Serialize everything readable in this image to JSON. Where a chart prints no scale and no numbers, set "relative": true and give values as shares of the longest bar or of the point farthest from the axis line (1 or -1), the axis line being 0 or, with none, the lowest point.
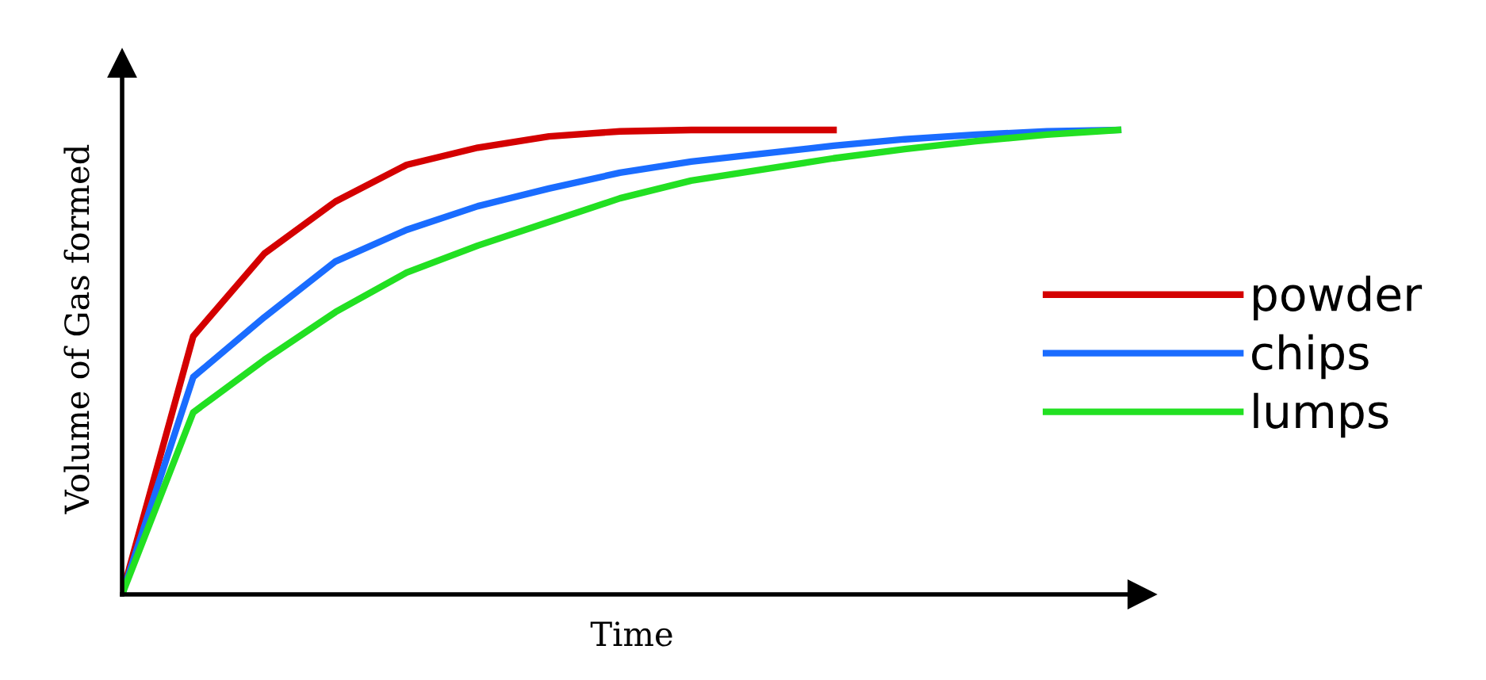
{
  "chart_data": {
    "type": "line",
    "relative": true,
    "xlabel": "Time",
    "ylabel": "Volume of Gas formed",
    "categories": [
      null,
      null,
      null,
      null,
      null,
      null,
      null,
      null,
      null,
      null,
      null,
      null,
      null,
      null,
      null
    ],
    "series": [
      {
        "name": "powder",
        "color": "#d40000",
        "values": [
          0,
          0.556,
          0.734,
          0.846,
          0.925,
          0.962,
          0.986,
          0.997,
          1,
          1,
          1,
          null,
          null,
          null,
          null
        ]
      },
      {
        "name": "chips",
        "color": "#1a6cff",
        "values": [
          0,
          0.468,
          0.597,
          0.717,
          0.785,
          0.836,
          0.874,
          0.908,
          0.932,
          0.949,
          0.966,
          0.98,
          0.99,
          0.997,
          1
        ]
      },
      {
        "name": "lumps",
        "color": "#22e022",
        "values": [
          0,
          0.392,
          0.505,
          0.608,
          0.693,
          0.751,
          0.802,
          0.853,
          0.891,
          0.915,
          0.939,
          0.959,
          0.976,
          0.99,
          1
        ]
      }
    ],
    "legend": "right",
    "grid": false,
    "tick_labels": false,
    "marker": "none",
    "line_style": "solid"
  }
}
